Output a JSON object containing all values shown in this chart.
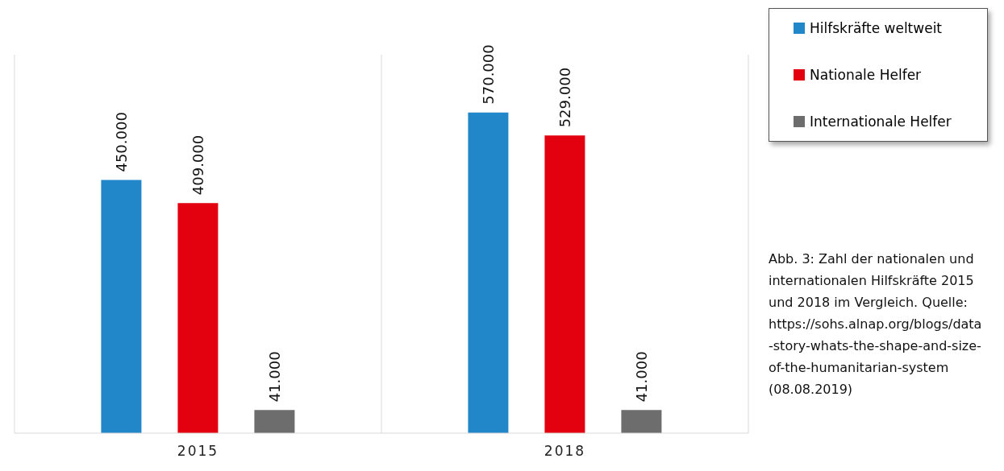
{
  "chart_data": {
    "type": "bar",
    "categories": [
      "2015",
      "2018"
    ],
    "series": [
      {
        "name": "Hilfskräfte weltweit",
        "color": "#2287c9",
        "values": [
          450000,
          570000
        ],
        "value_labels": [
          "450.000",
          "570.000"
        ]
      },
      {
        "name": "Nationale Helfer",
        "color": "#e3000f",
        "values": [
          409000,
          529000
        ],
        "value_labels": [
          "409.000",
          "529.000"
        ]
      },
      {
        "name": "Internationale Helfer",
        "color": "#6d6d6d",
        "values": [
          41000,
          41000
        ],
        "value_labels": [
          "41.000",
          "41.000"
        ]
      }
    ],
    "grid": "x",
    "legend": "right",
    "annotations": [
      "Abb. 3: Zahl der nationalen und internationalen Hilfskräfte 2015 und 2018 im Vergleich. Quelle: https://sohs.alnap.org/blogs/data-story-whats-the-shape-and-size-of-the-humanitarian-system (08.08.2019)"
    ]
  }
}
